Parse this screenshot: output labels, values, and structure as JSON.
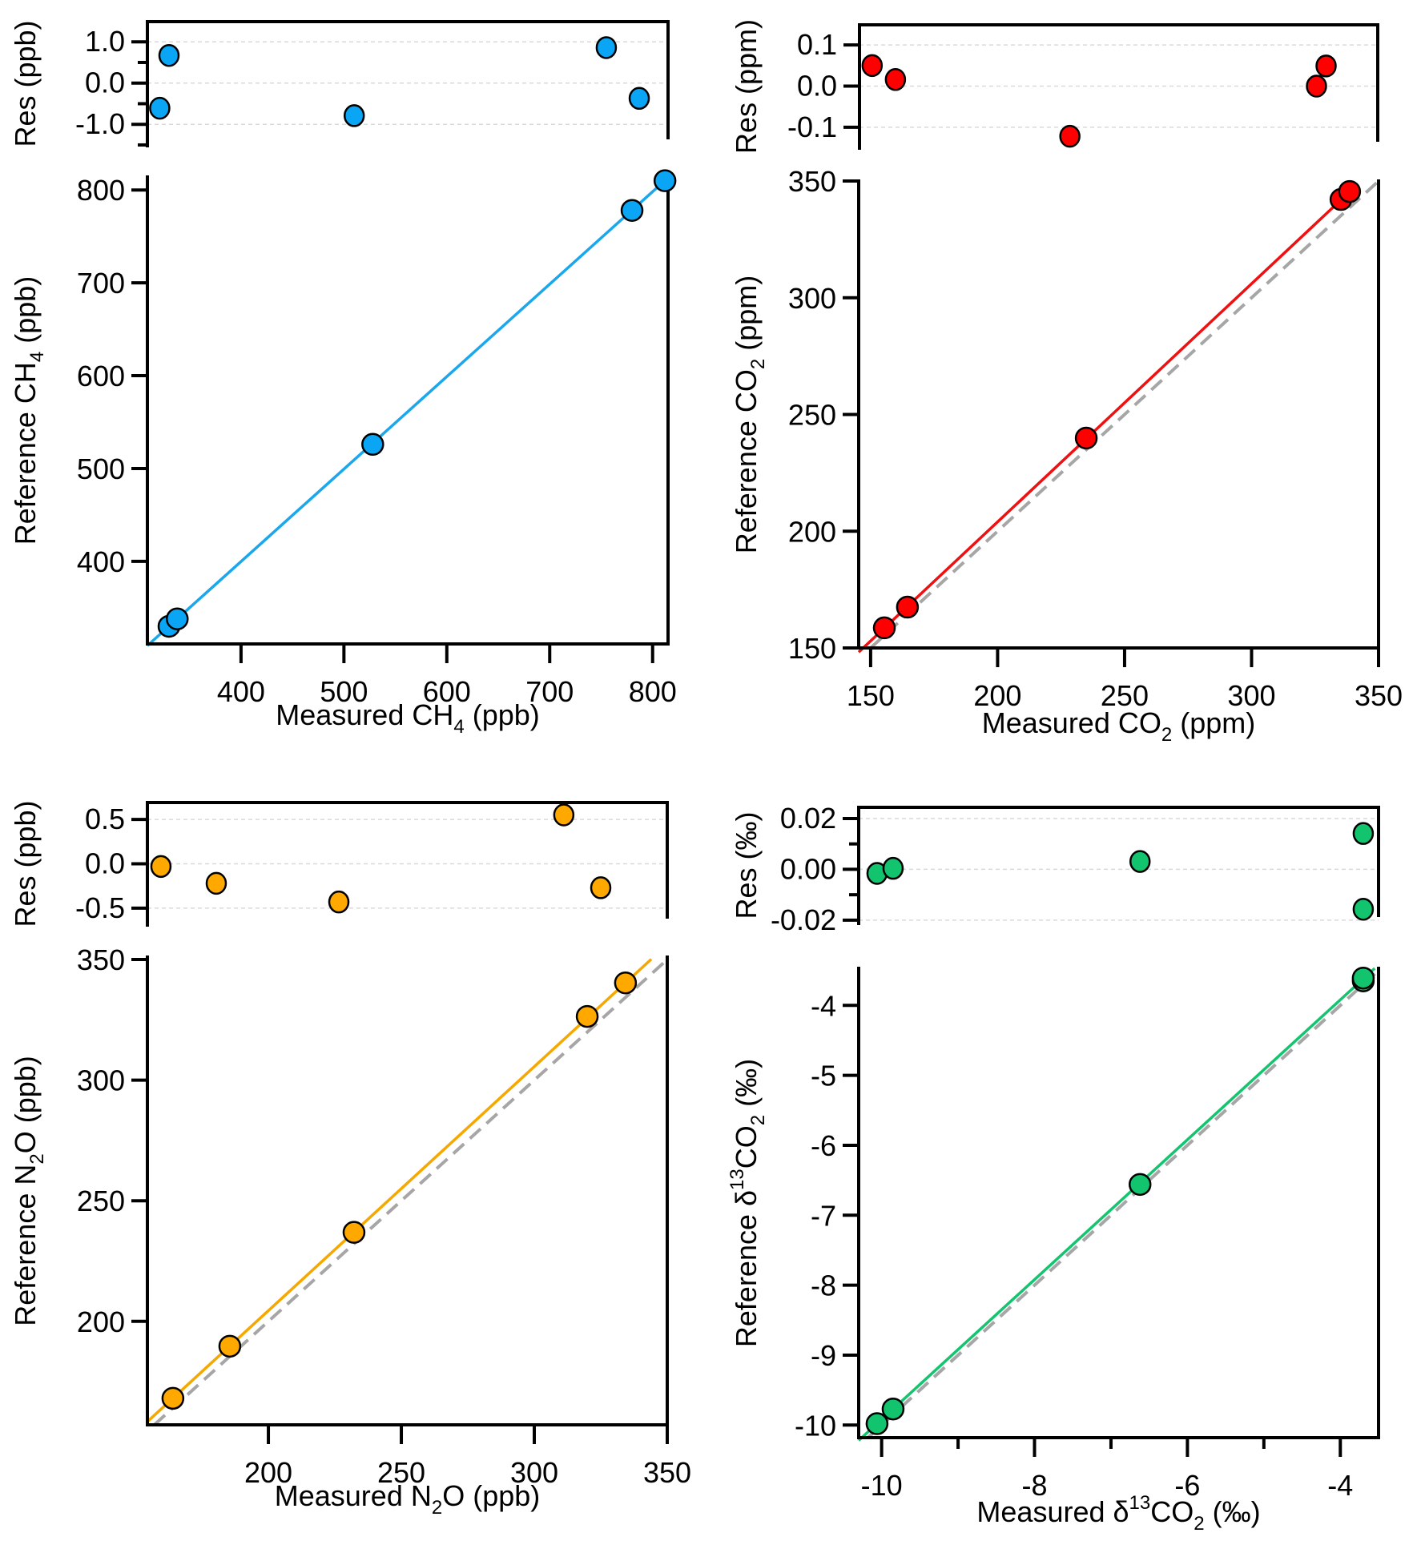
{
  "figure": {
    "description": "Four calibration panels: reference vs measured with residual subplots"
  },
  "chart_data": [
    {
      "id": "ch4",
      "type": "scatter",
      "color": "#0aa5f5",
      "line_color": "#1aa7ec",
      "residual": {
        "ylabel": "Res (ppb)",
        "yticks": [
          1.0,
          0.0,
          -1.0
        ],
        "ytick_labels": [
          "1.0",
          "0.0",
          "-1.0"
        ],
        "yminor": [
          0.5,
          -0.5,
          -1.5
        ],
        "ylim": [
          -1.52,
          1.49
        ],
        "grid": true,
        "x": [
          321,
          330,
          510,
          755,
          787
        ],
        "y": [
          -0.61,
          0.67,
          -0.79,
          0.86,
          -0.37
        ]
      },
      "main": {
        "xlabel": [
          "Measured CH",
          "4",
          " (ppb)"
        ],
        "ylabel": [
          "Reference CH",
          "4",
          " (ppb)"
        ],
        "xticks": [
          400,
          500,
          600,
          700,
          800
        ],
        "xtick_labels": [
          "400",
          "500",
          "600",
          "700",
          "800"
        ],
        "yticks": [
          400,
          500,
          600,
          700,
          800
        ],
        "ytick_labels": [
          "400",
          "500",
          "600",
          "700",
          "800"
        ],
        "xlim": [
          309,
          815
        ],
        "ylim": [
          311,
          814
        ],
        "x": [
          330,
          338,
          528,
          780,
          812
        ],
        "y": [
          330,
          338,
          526,
          778,
          810
        ],
        "fit": {
          "slope": 0.996,
          "intercept": 1.4,
          "x_range": [
            309,
            812
          ]
        },
        "one_to_one": false
      }
    },
    {
      "id": "co2",
      "type": "scatter",
      "color": "#ff0000",
      "line_color": "#ee1111",
      "residual": {
        "ylabel": "Res (ppm)",
        "yticks": [
          0.1,
          0.0,
          -0.1
        ],
        "ytick_labels": [
          "0.1",
          "0.0",
          "-0.1"
        ],
        "yminor": [],
        "ylim": [
          -0.151,
          0.149
        ],
        "grid": true,
        "x": [
          150.3,
          159.5,
          228.4,
          325.8,
          329.6
        ],
        "y": [
          0.05,
          0.016,
          -0.122,
          0.0,
          0.049
        ]
      },
      "main": {
        "xlabel": [
          "Measured CO",
          "2",
          " (ppm)"
        ],
        "ylabel": [
          "Reference CO",
          "2",
          " (ppm)"
        ],
        "xticks": [
          150,
          200,
          250,
          300,
          350
        ],
        "xtick_labels": [
          "150",
          "200",
          "250",
          "300",
          "350"
        ],
        "yticks": [
          150,
          200,
          250,
          300,
          350
        ],
        "ytick_labels": [
          "150",
          "200",
          "250",
          "300",
          "350"
        ],
        "xlim": [
          145.3,
          350
        ],
        "ylim": [
          150,
          350
        ],
        "x": [
          155.4,
          164.5,
          234.9,
          335.2,
          338.6
        ],
        "y": [
          158.6,
          167.5,
          239.9,
          342.1,
          345.5
        ],
        "fit": {
          "slope": 1.02,
          "intercept": 0.0,
          "x_range": [
            145.3,
            341.5
          ]
        },
        "one_to_one": true
      }
    },
    {
      "id": "n2o",
      "type": "scatter",
      "color": "#ffa800",
      "line_color": "#f5a800",
      "residual": {
        "ylabel": "Res (ppb)",
        "yticks": [
          0.5,
          0.0,
          -0.5
        ],
        "ytick_labels": [
          "0.5",
          "0.0",
          "-0.5"
        ],
        "yminor": [],
        "ylim": [
          -0.69,
          0.69
        ],
        "grid": true,
        "x": [
          159.6,
          180.4,
          226.5,
          311.1,
          325.0
        ],
        "y": [
          -0.03,
          -0.22,
          -0.43,
          0.55,
          -0.27
        ]
      },
      "main": {
        "xlabel": [
          "Measured N",
          "2",
          "O (ppb)"
        ],
        "ylabel": [
          "Reference N",
          "2",
          "O (ppb)"
        ],
        "xticks": [
          200,
          250,
          300,
          350
        ],
        "xtick_labels": [
          "200",
          "250",
          "300",
          "350"
        ],
        "yticks": [
          200,
          250,
          300,
          350
        ],
        "ytick_labels": [
          "200",
          "250",
          "300",
          "350"
        ],
        "xlim": [
          154.5,
          350
        ],
        "ylim": [
          157.1,
          351
        ],
        "x": [
          164.1,
          185.5,
          232.2,
          319.9,
          334.3
        ],
        "y": [
          168.1,
          189.7,
          236.9,
          326.4,
          340.3
        ],
        "fit": {
          "slope": 1.0117,
          "intercept": 2.1,
          "x_range": [
            154.5,
            344
          ]
        },
        "one_to_one": true
      }
    },
    {
      "id": "d13co2",
      "type": "scatter",
      "color": "#12c46e",
      "line_color": "#14c46e",
      "residual": {
        "ylabel": "Res (‰)",
        "yticks": [
          0.02,
          0.0,
          -0.02
        ],
        "ytick_labels": [
          "0.02",
          "0.00",
          "-0.02"
        ],
        "yminor": [
          0.01,
          -0.01
        ],
        "ylim": [
          -0.0213,
          0.0244
        ],
        "grid": true,
        "x": [
          -10.06,
          -9.85,
          -6.62,
          -3.7,
          -3.7
        ],
        "y": [
          -0.0016,
          0.0004,
          0.0031,
          0.0141,
          -0.0157
        ]
      },
      "main": {
        "xlabel": [
          "Measured δ",
          "13",
          "CO",
          "2",
          " (‰)"
        ],
        "ylabel": [
          "Reference δ",
          "13",
          "CO",
          "2",
          " (‰)"
        ],
        "xticks": [
          -10,
          -8,
          -6,
          -4
        ],
        "xtick_labels": [
          "-10",
          "-8",
          "-6",
          "-4"
        ],
        "xminor": [
          -9,
          -7,
          -5
        ],
        "yticks": [
          -10,
          -9,
          -8,
          -7,
          -6,
          -5,
          -4
        ],
        "ytick_labels": [
          "-10",
          "-9",
          "-8",
          "-7",
          "-6",
          "-5",
          "-4"
        ],
        "xlim": [
          -10.3,
          -3.5
        ],
        "ylim": [
          -10.18,
          -3.47
        ],
        "x": [
          -10.06,
          -9.85,
          -6.62,
          -3.7,
          -3.7
        ],
        "y": [
          -9.98,
          -9.77,
          -6.56,
          -3.65,
          -3.61
        ],
        "fit": {
          "slope": 1.0,
          "intercept": 0.08,
          "x_range": [
            -10.3,
            -3.55
          ]
        },
        "one_to_one": true
      }
    }
  ]
}
